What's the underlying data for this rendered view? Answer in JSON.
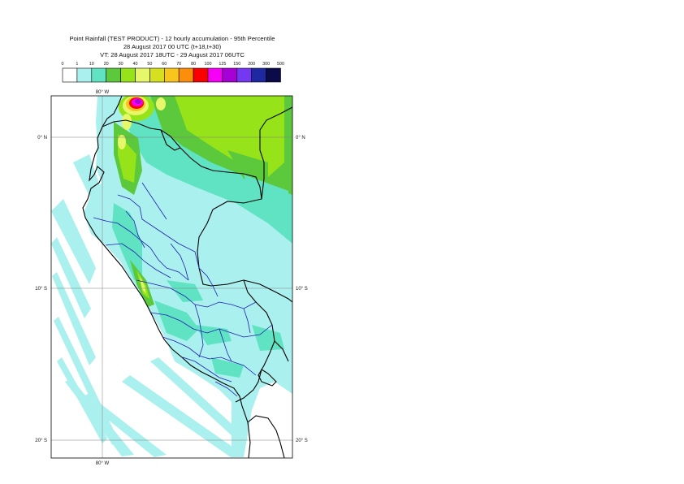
{
  "title": {
    "line1": "Point Rainfall (TEST PRODUCT) - 12 hourly accumulation - 95th Percentile",
    "line2": "28 August 2017 00 UTC (t+18,t+30)",
    "line3": "VT: 28 August 2017 18UTC - 29 August 2017 06UTC"
  },
  "legend": {
    "thresholds": [
      "0",
      "1",
      "10",
      "20",
      "30",
      "40",
      "50",
      "60",
      "70",
      "80",
      "100",
      "125",
      "150",
      "200",
      "300",
      "500"
    ],
    "colors": [
      "#ffffff",
      "#aaf0ee",
      "#5fe3c2",
      "#5cc83c",
      "#96e31a",
      "#e6f76a",
      "#d6e01e",
      "#f7c51c",
      "#fc8e0c",
      "#fa0000",
      "#f500f5",
      "#a600d6",
      "#7438f2",
      "#1e28a0",
      "#0b0b4a"
    ]
  },
  "map": {
    "lon_label": "80° W",
    "lat_labels": [
      "0° N",
      "10° S",
      "20° S"
    ],
    "colors": {
      "ocean": "#ffffff",
      "land_base": "#aaf0ee",
      "coast": "#000000",
      "boundary": "#1f1fb0",
      "gridline": "#7f7f7f"
    }
  }
}
